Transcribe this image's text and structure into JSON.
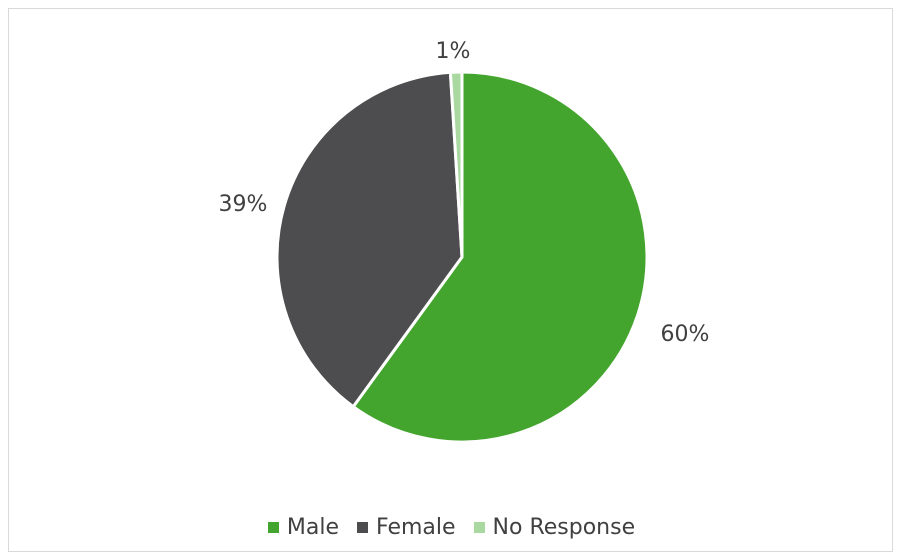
{
  "chart_data": {
    "type": "pie",
    "title": "",
    "slices": [
      {
        "label": "Male",
        "value": 60,
        "data_label": "60%",
        "color": "#43a52d"
      },
      {
        "label": "Female",
        "value": 39,
        "data_label": "39%",
        "color": "#4d4d4f"
      },
      {
        "label": "No Response",
        "value": 1,
        "data_label": "1%",
        "color": "#a9d8a1"
      }
    ],
    "legend_position": "bottom"
  }
}
